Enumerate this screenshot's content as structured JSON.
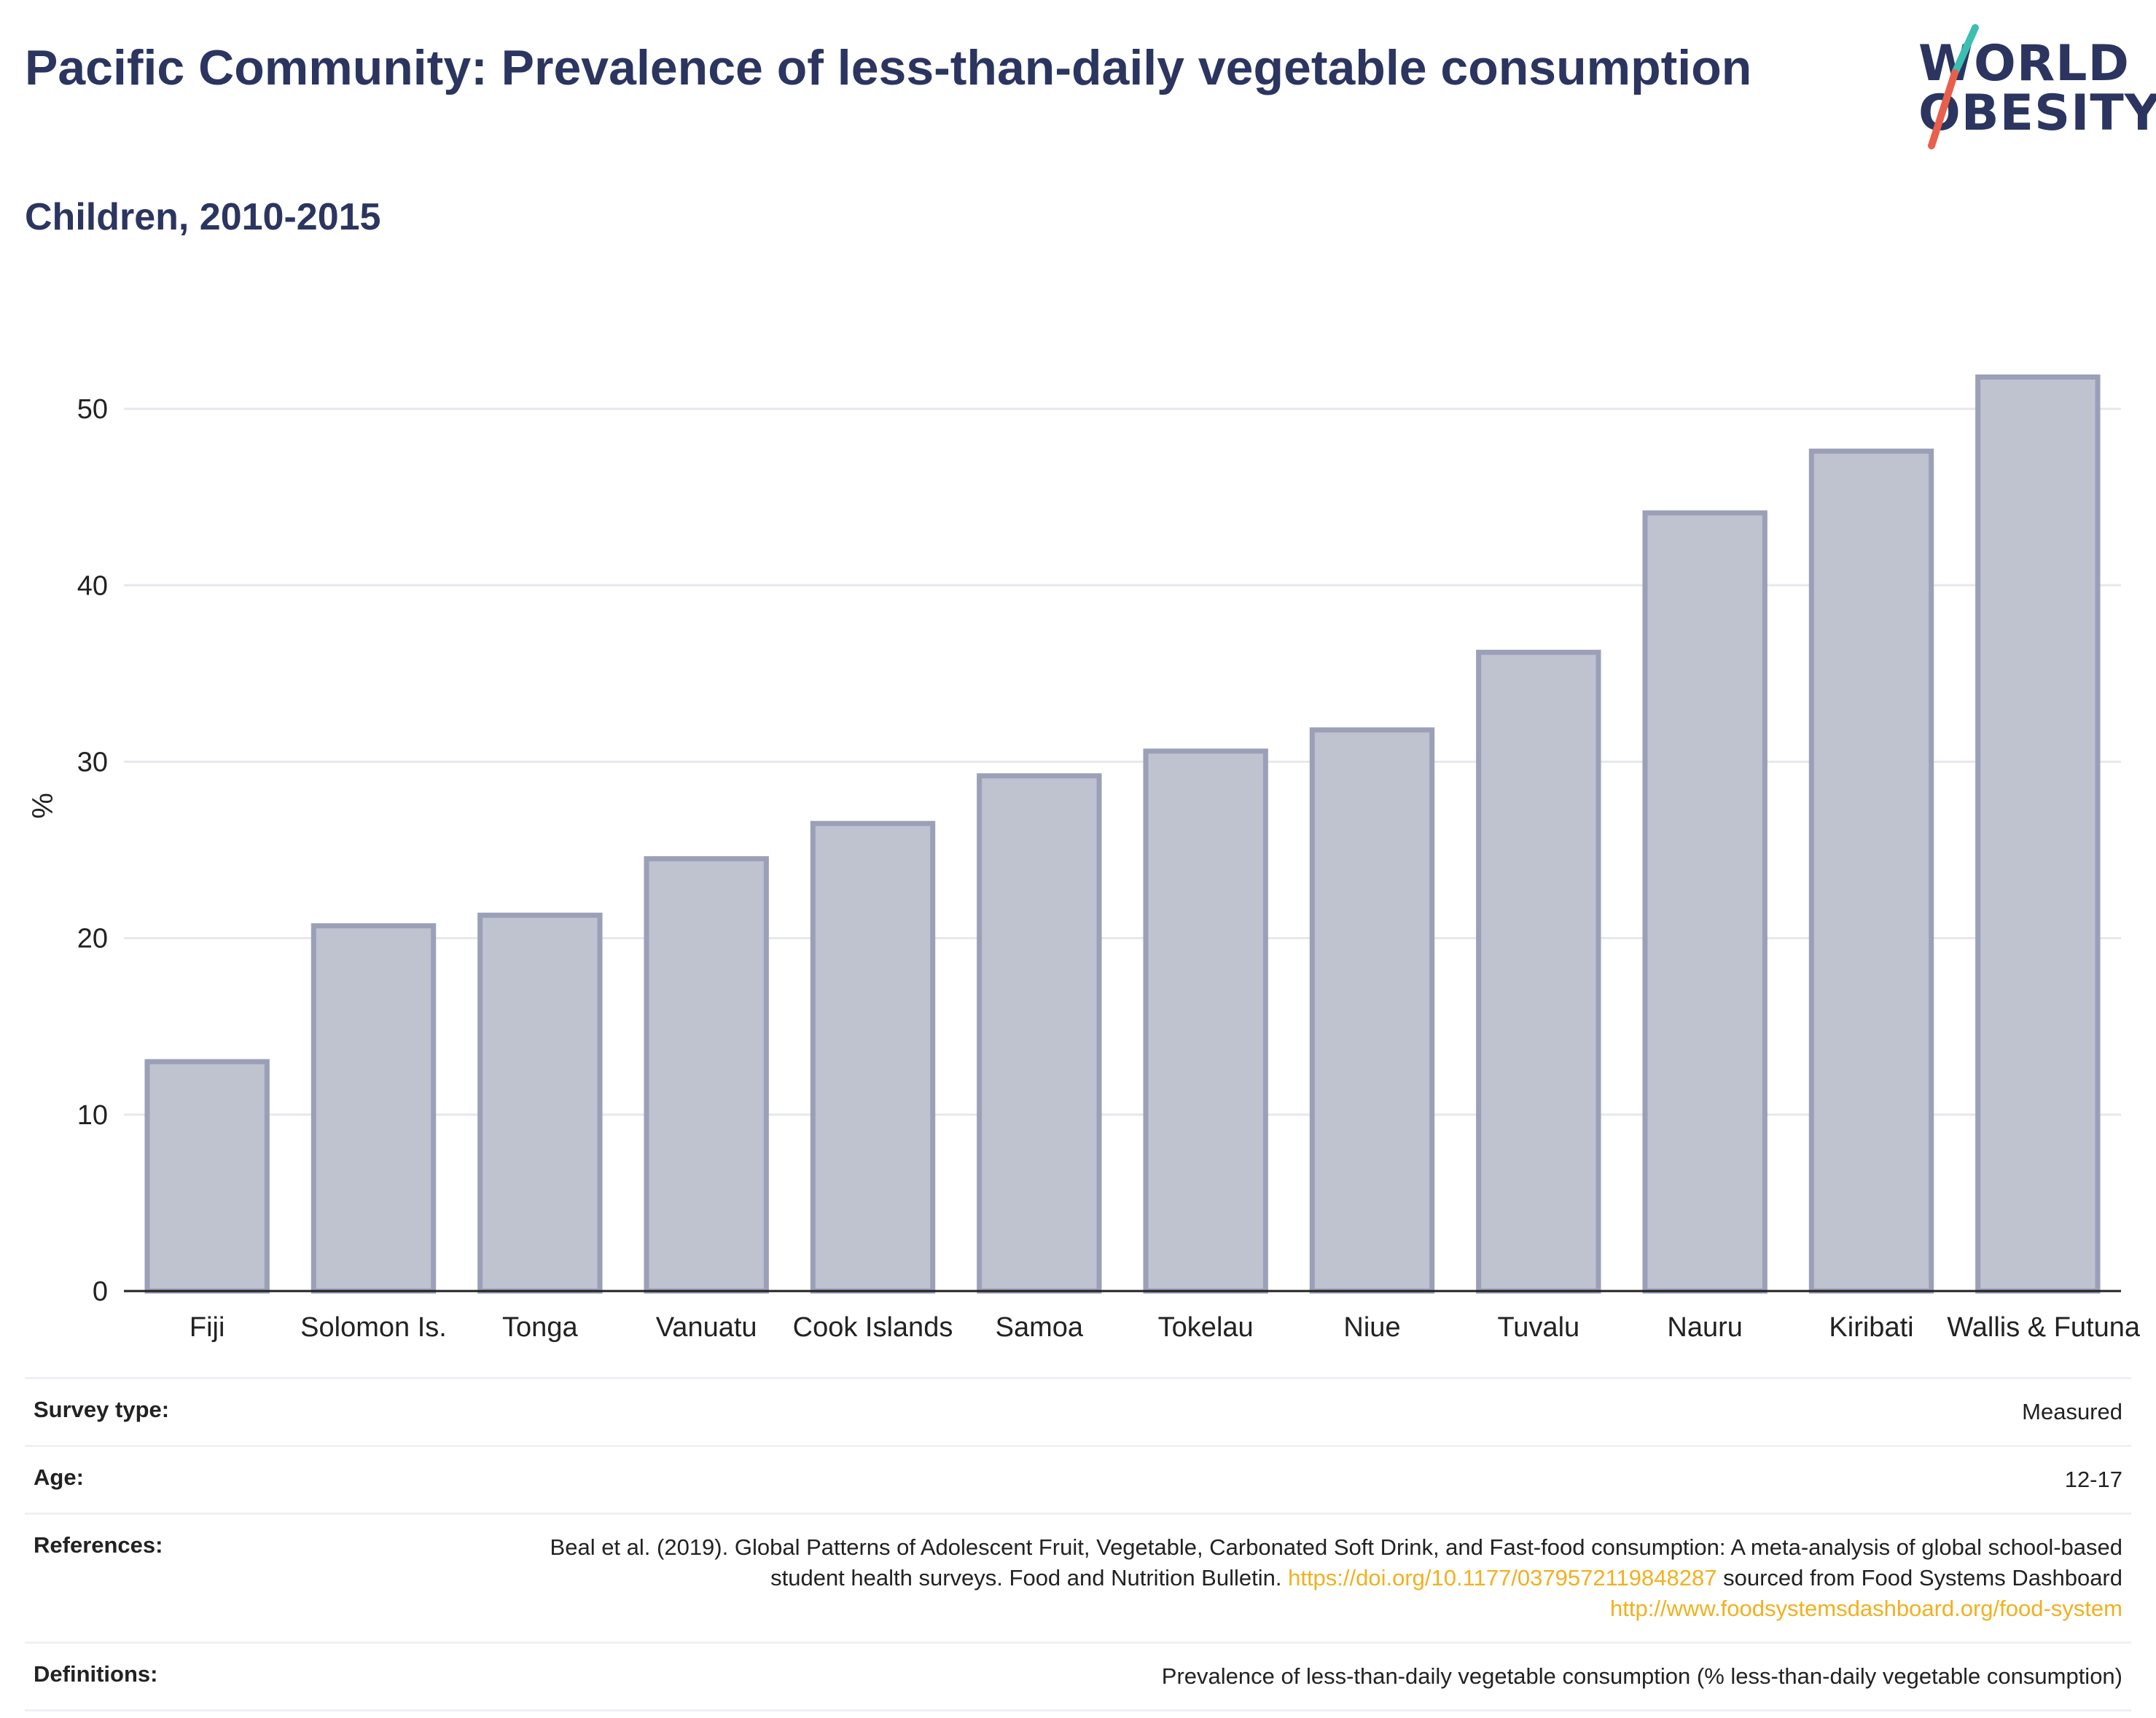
{
  "header": {
    "title": "Pacific Community: Prevalence of less-than-daily vegetable consumption",
    "subtitle": "Children, 2010-2015"
  },
  "logo": {
    "line1": "WORLD",
    "line2": "OBESITY",
    "colors": {
      "text": "#2b3560",
      "slash_top": "#3bbfb2",
      "slash_bottom": "#e8604c"
    }
  },
  "chart_data": {
    "type": "bar",
    "categories": [
      "Fiji",
      "Solomon Is.",
      "Tonga",
      "Vanuatu",
      "Cook Islands",
      "Samoa",
      "Tokelau",
      "Niue",
      "Tuvalu",
      "Nauru",
      "Kiribati",
      "Wallis & Futuna"
    ],
    "values": [
      13.0,
      20.7,
      21.3,
      24.5,
      26.5,
      29.2,
      30.6,
      31.8,
      36.2,
      44.1,
      47.6,
      51.8
    ],
    "title": "Pacific Community: Prevalence of less-than-daily vegetable consumption",
    "subtitle": "Children, 2010-2015",
    "xlabel": "",
    "ylabel": "%",
    "ylim": [
      0,
      55
    ],
    "yticks": [
      0,
      10,
      20,
      30,
      40,
      50
    ],
    "grid": true,
    "colors": {
      "bar_fill": "#bfc2cf",
      "bar_stroke": "#9ba0b8",
      "grid": "#e6e8ee",
      "axis": "#222222"
    }
  },
  "table": {
    "rows": [
      {
        "key": "Survey type:",
        "value": "Measured"
      },
      {
        "key": "Age:",
        "value": "12-17"
      },
      {
        "key": "References:",
        "value_part1": "Beal et al. (2019). Global Patterns of Adolescent Fruit, Vegetable, Carbonated Soft Drink, and Fast-food consumption: A meta-analysis of global school-based student health surveys. Food and Nutrition Bulletin.",
        "link1": "https://doi.org/10.1177/0379572119848287",
        "value_part2": "sourced from Food Systems Dashboard",
        "link2": "http://www.foodsystemsdashboard.org/food-system"
      },
      {
        "key": "Definitions:",
        "value": "Prevalence of less-than-daily vegetable consumption (% less-than-daily vegetable consumption)"
      }
    ]
  }
}
